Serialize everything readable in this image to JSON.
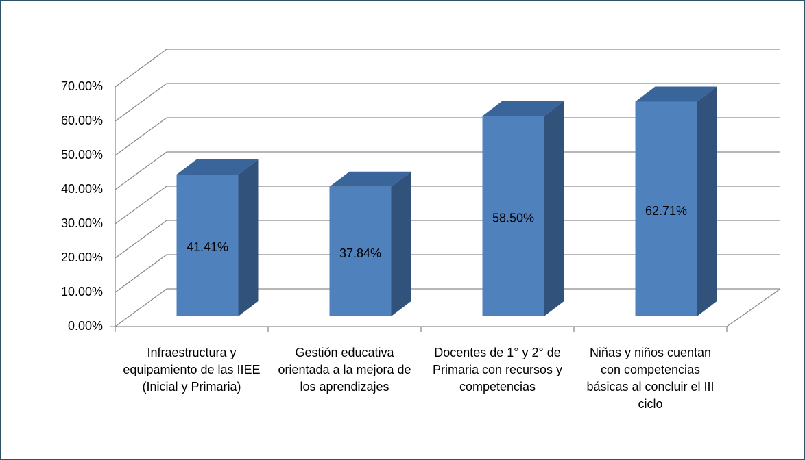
{
  "chart_data": {
    "type": "bar3d",
    "categories": [
      "Infraestructura y equipamiento de las IIEE (Inicial y Primaria)",
      "Gestión educativa orientada a la mejora de los aprendizajes",
      "Docentes de 1° y 2° de Primaria con recursos y competencias",
      "Niñas y niños cuentan con competencias básicas al concluir el III ciclo"
    ],
    "values": [
      41.41,
      37.84,
      58.5,
      62.71
    ],
    "value_labels": [
      "41.41%",
      "37.84%",
      "58.50%",
      "62.71%"
    ],
    "color": "#4f81bd",
    "ylim": [
      0,
      70
    ],
    "yticks": [
      {
        "value": 0,
        "label": "0.00%"
      },
      {
        "value": 10,
        "label": "10.00%"
      },
      {
        "value": 20,
        "label": "20.00%"
      },
      {
        "value": 30,
        "label": "30.00%"
      },
      {
        "value": 40,
        "label": "40.00%"
      },
      {
        "value": 50,
        "label": "50.00%"
      },
      {
        "value": 60,
        "label": "60.00%"
      },
      {
        "value": 70,
        "label": "70.00%"
      }
    ],
    "grid": true
  }
}
